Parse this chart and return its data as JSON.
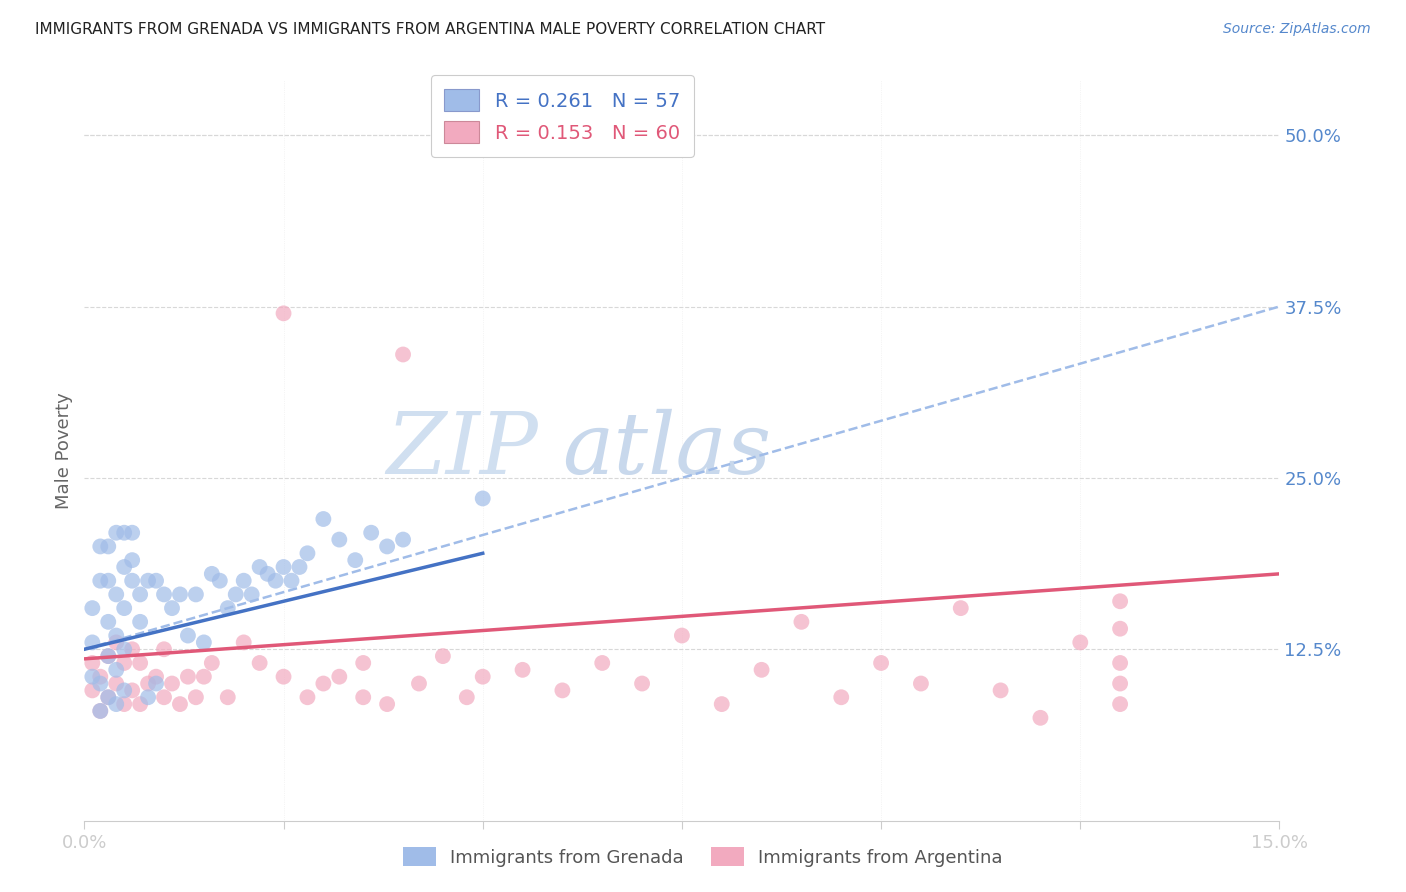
{
  "title": "IMMIGRANTS FROM GRENADA VS IMMIGRANTS FROM ARGENTINA MALE POVERTY CORRELATION CHART",
  "source": "Source: ZipAtlas.com",
  "ylabel": "Male Poverty",
  "y_tick_labels": [
    "12.5%",
    "25.0%",
    "37.5%",
    "50.0%"
  ],
  "y_tick_values": [
    0.125,
    0.25,
    0.375,
    0.5
  ],
  "xlim": [
    0.0,
    0.15
  ],
  "ylim": [
    0.0,
    0.54
  ],
  "grenada_color": "#a0bce8",
  "argentina_color": "#f2aabf",
  "grenada_line_color": "#4472c4",
  "argentina_line_color": "#e05878",
  "dashed_line_color": "#a0bce8",
  "watermark_zip_color": "#d0dff0",
  "watermark_atlas_color": "#c8d8ec",
  "background_color": "#ffffff",
  "grid_color": "#d8d8d8",
  "title_color": "#222222",
  "axis_label_color": "#5588cc",
  "legend_label1": "R = 0.261   N = 57",
  "legend_label2": "R = 0.153   N = 60",
  "grenada_legend": "Immigrants from Grenada",
  "argentina_legend": "Immigrants from Argentina",
  "grenada_x": [
    0.001,
    0.001,
    0.001,
    0.002,
    0.002,
    0.002,
    0.002,
    0.003,
    0.003,
    0.003,
    0.003,
    0.003,
    0.004,
    0.004,
    0.004,
    0.004,
    0.004,
    0.005,
    0.005,
    0.005,
    0.005,
    0.005,
    0.006,
    0.006,
    0.006,
    0.007,
    0.007,
    0.008,
    0.008,
    0.009,
    0.009,
    0.01,
    0.011,
    0.012,
    0.013,
    0.014,
    0.015,
    0.016,
    0.017,
    0.018,
    0.019,
    0.02,
    0.021,
    0.022,
    0.023,
    0.024,
    0.025,
    0.026,
    0.027,
    0.028,
    0.03,
    0.032,
    0.034,
    0.036,
    0.038,
    0.04,
    0.05
  ],
  "grenada_y": [
    0.105,
    0.13,
    0.155,
    0.08,
    0.1,
    0.175,
    0.2,
    0.09,
    0.12,
    0.145,
    0.175,
    0.2,
    0.085,
    0.11,
    0.135,
    0.165,
    0.21,
    0.095,
    0.125,
    0.155,
    0.185,
    0.21,
    0.175,
    0.19,
    0.21,
    0.145,
    0.165,
    0.09,
    0.175,
    0.1,
    0.175,
    0.165,
    0.155,
    0.165,
    0.135,
    0.165,
    0.13,
    0.18,
    0.175,
    0.155,
    0.165,
    0.175,
    0.165,
    0.185,
    0.18,
    0.175,
    0.185,
    0.175,
    0.185,
    0.195,
    0.22,
    0.205,
    0.19,
    0.21,
    0.2,
    0.205,
    0.235
  ],
  "argentina_x": [
    0.001,
    0.001,
    0.002,
    0.002,
    0.003,
    0.003,
    0.004,
    0.004,
    0.005,
    0.005,
    0.006,
    0.006,
    0.007,
    0.007,
    0.008,
    0.009,
    0.01,
    0.01,
    0.011,
    0.012,
    0.013,
    0.014,
    0.015,
    0.016,
    0.018,
    0.02,
    0.022,
    0.025,
    0.025,
    0.028,
    0.03,
    0.032,
    0.035,
    0.035,
    0.038,
    0.04,
    0.042,
    0.045,
    0.048,
    0.05,
    0.055,
    0.06,
    0.065,
    0.07,
    0.075,
    0.08,
    0.085,
    0.09,
    0.095,
    0.1,
    0.105,
    0.11,
    0.115,
    0.12,
    0.125,
    0.13,
    0.13,
    0.13,
    0.13,
    0.13
  ],
  "argentina_y": [
    0.095,
    0.115,
    0.08,
    0.105,
    0.09,
    0.12,
    0.1,
    0.13,
    0.085,
    0.115,
    0.095,
    0.125,
    0.085,
    0.115,
    0.1,
    0.105,
    0.09,
    0.125,
    0.1,
    0.085,
    0.105,
    0.09,
    0.105,
    0.115,
    0.09,
    0.13,
    0.115,
    0.105,
    0.37,
    0.09,
    0.1,
    0.105,
    0.09,
    0.115,
    0.085,
    0.34,
    0.1,
    0.12,
    0.09,
    0.105,
    0.11,
    0.095,
    0.115,
    0.1,
    0.135,
    0.085,
    0.11,
    0.145,
    0.09,
    0.115,
    0.1,
    0.155,
    0.095,
    0.075,
    0.13,
    0.1,
    0.115,
    0.14,
    0.085,
    0.16
  ],
  "grenada_line_x0": 0.0,
  "grenada_line_x1": 0.05,
  "grenada_line_y0": 0.125,
  "grenada_line_y1": 0.195,
  "dashed_line_x0": 0.0,
  "dashed_line_x1": 0.15,
  "dashed_line_y0": 0.125,
  "dashed_line_y1": 0.375,
  "argentina_line_x0": 0.0,
  "argentina_line_x1": 0.15,
  "argentina_line_y0": 0.118,
  "argentina_line_y1": 0.18
}
